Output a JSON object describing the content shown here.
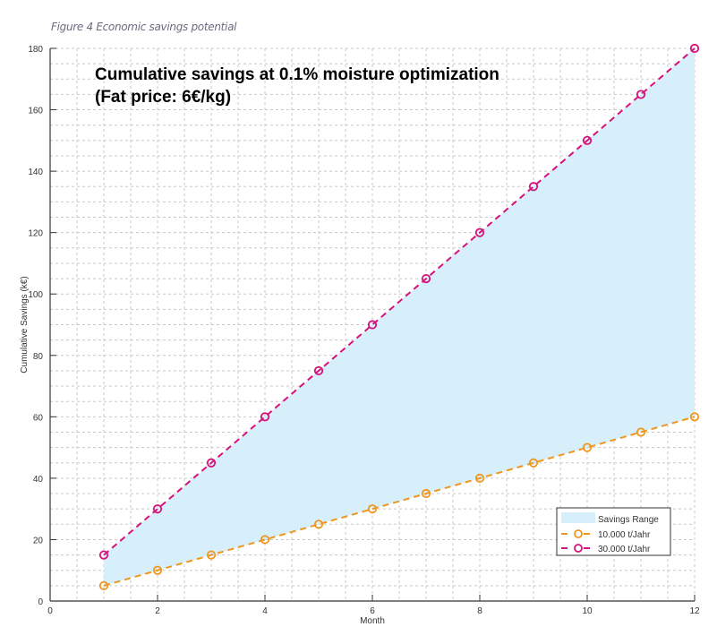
{
  "caption": "Figure 4  Economic savings potential",
  "chart_data": {
    "type": "line",
    "title": "Cumulative savings at 0.1% moisture optimization",
    "subtitle": "(Fat price: 6€/kg)",
    "xlabel": "Month",
    "ylabel": "Cumulative Savings (k€)",
    "xlim": [
      0,
      12
    ],
    "ylim": [
      0,
      180
    ],
    "xticks": [
      0,
      2,
      4,
      6,
      8,
      10,
      12
    ],
    "yticks": [
      0,
      20,
      40,
      60,
      80,
      100,
      120,
      140,
      160,
      180
    ],
    "grid": true,
    "legend_position": "bottom-right",
    "x": [
      1,
      2,
      3,
      4,
      5,
      6,
      7,
      8,
      9,
      10,
      11,
      12
    ],
    "series": [
      {
        "name": "10.000 t/Jahr",
        "color": "#f0961e",
        "values": [
          5,
          10,
          15,
          20,
          25,
          30,
          35,
          40,
          45,
          50,
          55,
          60
        ]
      },
      {
        "name": "30.000 t/Jahr",
        "color": "#d6127a",
        "values": [
          15,
          30,
          45,
          60,
          75,
          90,
          105,
          120,
          135,
          150,
          165,
          180
        ]
      }
    ],
    "fill": {
      "name": "Savings Range",
      "color": "#d7effb"
    }
  }
}
